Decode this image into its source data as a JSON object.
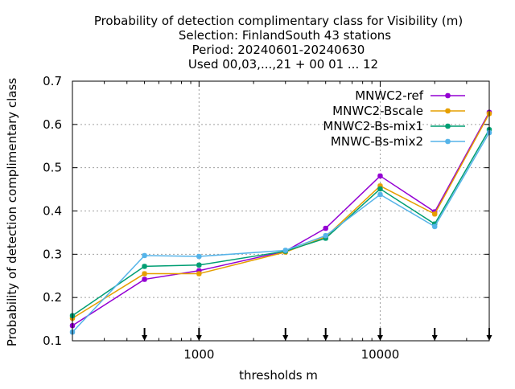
{
  "chart_data": {
    "type": "line",
    "title_lines": [
      "Probability of detection complimentary class  for Visibility (m)",
      "Selection: FinlandSouth     43 stations",
      "Period: 20240601-20240630",
      "Used 00,03,...,21 + 00 01 ... 12"
    ],
    "xlabel": "thresholds m",
    "ylabel": "Probability of detection complimentary class",
    "x_scale": "log",
    "xlim": [
      200,
      40000
    ],
    "ylim": [
      0.1,
      0.7
    ],
    "x_ticks": [
      1000,
      10000
    ],
    "x_tick_labels": [
      "1000",
      "10000"
    ],
    "y_ticks": [
      0.1,
      0.2,
      0.3,
      0.4,
      0.5,
      0.6,
      0.7
    ],
    "y_tick_labels": [
      "0.1",
      "0.2",
      "0.3",
      "0.4",
      "0.5",
      "0.6",
      "0.7"
    ],
    "grid": true,
    "legend_position": "top-right",
    "threshold_markers": [
      500,
      1000,
      3000,
      5000,
      10000,
      20000,
      40000
    ],
    "x": [
      200,
      500,
      1000,
      3000,
      5000,
      10000,
      20000,
      40000
    ],
    "series": [
      {
        "name": "MNWC2-ref",
        "color": "#9400d3",
        "values": [
          0.135,
          0.242,
          0.262,
          0.307,
          0.36,
          0.481,
          0.398,
          0.628
        ]
      },
      {
        "name": "MNWC2-Bscale",
        "color": "#e69f00",
        "values": [
          0.152,
          0.255,
          0.255,
          0.305,
          0.34,
          0.458,
          0.393,
          0.625
        ]
      },
      {
        "name": "MNWC2-Bs-mix1",
        "color": "#009e73",
        "values": [
          0.158,
          0.272,
          0.275,
          0.307,
          0.337,
          0.451,
          0.37,
          0.588
        ]
      },
      {
        "name": "MNWC-Bs-mix2",
        "color": "#56b4e9",
        "values": [
          0.12,
          0.297,
          0.295,
          0.309,
          0.343,
          0.438,
          0.364,
          0.581
        ]
      }
    ]
  }
}
